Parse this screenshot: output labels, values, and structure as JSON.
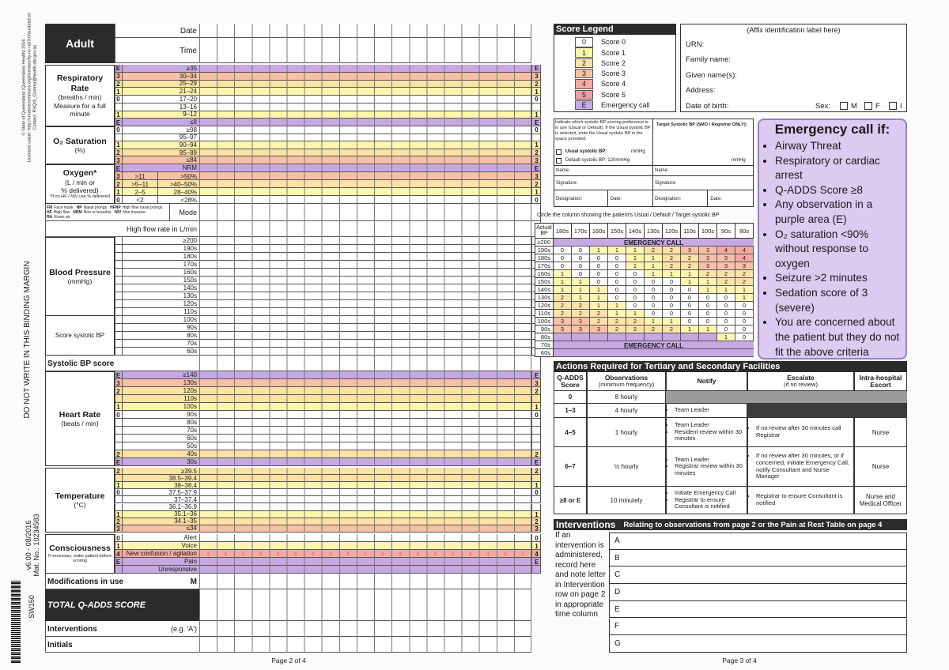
{
  "margin": {
    "copyright": [
      "© State of Queensland (Queensland Health) 2016",
      "Licensed under: http://creativecommons.org/licenses/by-nc-nd/3.0/au/deed.en",
      "Contact: PSQIS_Comms@health.qld.gov.au"
    ],
    "binding": "DO NOT WRITE IN THIS BINDING MARGIN",
    "version": "v6.00 - 08/2016",
    "mat_no": "Mat. No.: 10234583",
    "code": "SW150"
  },
  "score_legend": {
    "title": "Score Legend",
    "items": [
      {
        "score": "0",
        "label": "Score 0",
        "color": "#ffffff"
      },
      {
        "score": "1",
        "label": "Score 1",
        "color": "#fff6ae"
      },
      {
        "score": "2",
        "label": "Score 2",
        "color": "#fde2a6"
      },
      {
        "score": "3",
        "label": "Score 3",
        "color": "#f8c0a6"
      },
      {
        "score": "4",
        "label": "Score 4",
        "color": "#f4a9a2"
      },
      {
        "score": "5",
        "label": "Score 5",
        "color": "#ee9dab"
      },
      {
        "score": "E",
        "label": "Emergency call",
        "color": "#c7a8e2"
      }
    ]
  },
  "chart_sheet": {
    "header": {
      "title": "Adult",
      "date": "Date",
      "time": "Time"
    },
    "sections": [
      {
        "title": "Respiratory Rate",
        "notes": [
          "(breaths / min)",
          "Measure for a full minute"
        ],
        "rows": [
          {
            "score": "E",
            "range": [
              "≥35"
            ]
          },
          {
            "score": "3",
            "range": [
              "30–34"
            ]
          },
          {
            "score": "2",
            "range": [
              "25–29"
            ]
          },
          {
            "score": "1",
            "range": [
              "21–24"
            ]
          },
          {
            "score": "0",
            "range": [
              "17–20"
            ]
          },
          {
            "score": null,
            "range": [
              "13–16"
            ]
          },
          {
            "score": "1",
            "range": [
              "9–12"
            ]
          },
          {
            "score": "E",
            "range": [
              "≤8"
            ]
          }
        ]
      },
      {
        "title": "O₂ Saturation",
        "notes": [
          "(%)"
        ],
        "rows": [
          {
            "score": "0",
            "range": [
              "≥98"
            ]
          },
          {
            "score": null,
            "range": [
              "95–97"
            ]
          },
          {
            "score": "1",
            "range": [
              "90–94"
            ]
          },
          {
            "score": "2",
            "range": [
              "85–89"
            ]
          },
          {
            "score": "3",
            "range": [
              "≤84"
            ]
          }
        ]
      },
      {
        "title": "Oxygen*",
        "notes": [
          "(L / min or",
          "% delivered)",
          "*If on HF / NIV use % delivered"
        ],
        "rows": [
          {
            "score": "E",
            "range": [
              "NRM"
            ]
          },
          {
            "score": "3",
            "range": [
              ">11",
              ">50%"
            ]
          },
          {
            "score": "2",
            "range": [
              ">5–11",
              ">40–50%"
            ]
          },
          {
            "score": "1",
            "range": [
              "2–5",
              "28–40%"
            ]
          },
          {
            "score": "0",
            "range": [
              "<2",
              "<28%"
            ]
          }
        ]
      },
      {
        "title": "Blood Pressure",
        "notes": [
          "(mmHg)"
        ],
        "extra": "Score systolic BP",
        "rows": [
          {
            "score": null,
            "range": [
              "≥200"
            ]
          },
          {
            "score": null,
            "range": [
              "190s"
            ]
          },
          {
            "score": null,
            "range": [
              "180s"
            ]
          },
          {
            "score": null,
            "range": [
              "170s"
            ]
          },
          {
            "score": null,
            "range": [
              "160s"
            ]
          },
          {
            "score": null,
            "range": [
              "150s"
            ]
          },
          {
            "score": null,
            "range": [
              "140s"
            ]
          },
          {
            "score": null,
            "range": [
              "130s"
            ]
          },
          {
            "score": null,
            "range": [
              "120s"
            ]
          },
          {
            "score": null,
            "range": [
              "110s"
            ]
          },
          {
            "score": null,
            "range": [
              "100s"
            ]
          },
          {
            "score": null,
            "range": [
              "90s"
            ]
          },
          {
            "score": null,
            "range": [
              "80s"
            ]
          },
          {
            "score": null,
            "range": [
              "70s"
            ]
          },
          {
            "score": null,
            "range": [
              "60s"
            ]
          }
        ]
      },
      {
        "title": "Heart Rate",
        "notes": [
          "(beats / min)"
        ],
        "rows": [
          {
            "score": "E",
            "range": [
              "≥140"
            ]
          },
          {
            "score": "3",
            "range": [
              "130s"
            ]
          },
          {
            "score": "2",
            "range": [
              "120s"
            ]
          },
          {
            "score": null,
            "range": [
              "110s"
            ]
          },
          {
            "score": "1",
            "range": [
              "100s"
            ]
          },
          {
            "score": "0",
            "range": [
              "90s"
            ]
          },
          {
            "score": null,
            "range": [
              "80s"
            ]
          },
          {
            "score": null,
            "range": [
              "70s"
            ]
          },
          {
            "score": null,
            "range": [
              "60s"
            ]
          },
          {
            "score": null,
            "range": [
              "50s"
            ]
          },
          {
            "score": "2",
            "range": [
              "40s"
            ]
          },
          {
            "score": "E",
            "range": [
              "30s"
            ]
          }
        ]
      },
      {
        "title": "Temperature",
        "notes": [
          "(°C)"
        ],
        "rows": [
          {
            "score": "2",
            "range": [
              "≥39.5"
            ]
          },
          {
            "score": null,
            "range": [
              "38.5–39.4"
            ]
          },
          {
            "score": "1",
            "range": [
              "38–38.4"
            ]
          },
          {
            "score": "0",
            "range": [
              "37.5–37.9"
            ]
          },
          {
            "score": null,
            "range": [
              "37–37.4"
            ]
          },
          {
            "score": null,
            "range": [
              "36.1–36.9"
            ]
          },
          {
            "score": "1",
            "range": [
              "35.1–36"
            ]
          },
          {
            "score": "2",
            "range": [
              "34.1–35"
            ]
          },
          {
            "score": "3",
            "range": [
              "≤34"
            ]
          }
        ]
      },
      {
        "title": "Consciousness",
        "notes": [
          "If necessary, wake patient before scoring"
        ],
        "rows": [
          {
            "score": "0",
            "range": [
              "Alert"
            ]
          },
          {
            "score": "1",
            "range": [
              "Voice"
            ]
          },
          {
            "score": "4",
            "range": [
              "New confusion / agitation"
            ]
          },
          {
            "score": "E",
            "range": [
              "Pain"
            ]
          },
          {
            "score": null,
            "range": [
              "Unresponsive"
            ]
          }
        ]
      }
    ],
    "mode_legend": [
      [
        "FM",
        "Face mask"
      ],
      [
        "NP",
        "Nasal prongs"
      ],
      [
        "HFNP",
        "High flow nasal prongs"
      ],
      [
        "HF",
        "High flow"
      ],
      [
        "NRM",
        "Non re-breather"
      ],
      [
        "NIV",
        "Non invasive"
      ],
      [
        "RA",
        "Room air"
      ]
    ],
    "mode": "Mode",
    "high_flow": "High flow rate in L/min",
    "systolic_bp_score": "Systolic BP score",
    "modifications": "Modifications in use",
    "modifications_code": "M",
    "total": "TOTAL Q-ADDS SCORE",
    "interventions": "Interventions",
    "interventions_hint": "(e.g. 'A')",
    "initials": "Initials",
    "page": "Page 2 of 4"
  },
  "identification": {
    "note": "(Affix identification label here)",
    "fields": [
      "URN:",
      "Family name:",
      "Given name(s):",
      "Address:",
      "Date of birth:"
    ],
    "sex": "Sex:",
    "sex_options": [
      "M",
      "F",
      "I"
    ]
  },
  "bp_preference": {
    "instruction": "Indicate which systolic BP scoring preference is in use (Usual or Default). If the Usual systolic BP is selected, write the Usual systolic BP in the space provided:",
    "usual": "Usual systolic BP:",
    "usual_unit": "mmHg",
    "default": "Default systolic BP: 120mmHg",
    "target": "Target Systolic BP (SMO / Registrar ONLY):",
    "target_unit": "mmHg",
    "name": "Name:",
    "signature": "Signature:",
    "designation": "Designation:",
    "date": "Date:"
  },
  "circle_note": "Circle the column showing the patient's Usual / Default / Target systolic BP",
  "bp_table": {
    "header": "Actual BP",
    "emergency": "EMERGENCY CALL",
    "columns": [
      "180s",
      "170s",
      "160s",
      "150s",
      "140s",
      "130s",
      "120s",
      "110s",
      "100s",
      "90s",
      "80s"
    ],
    "rows": [
      {
        "bp": "≥200"
      },
      {
        "bp": "190s",
        "values": [
          0,
          0,
          1,
          1,
          1,
          2,
          2,
          3,
          3,
          4,
          4
        ]
      },
      {
        "bp": "180s",
        "values": [
          0,
          0,
          0,
          0,
          1,
          1,
          2,
          2,
          3,
          3,
          4
        ]
      },
      {
        "bp": "170s",
        "values": [
          0,
          0,
          0,
          0,
          1,
          1,
          2,
          2,
          3,
          3,
          3
        ]
      },
      {
        "bp": "160s",
        "values": [
          1,
          0,
          0,
          0,
          0,
          1,
          1,
          1,
          2,
          2,
          2
        ]
      },
      {
        "bp": "150s",
        "values": [
          1,
          1,
          0,
          0,
          0,
          0,
          0,
          1,
          1,
          2,
          2
        ]
      },
      {
        "bp": "140s",
        "values": [
          1,
          1,
          1,
          0,
          0,
          0,
          0,
          0,
          1,
          1,
          1
        ]
      },
      {
        "bp": "130s",
        "values": [
          2,
          1,
          1,
          0,
          0,
          0,
          0,
          0,
          0,
          0,
          1
        ]
      },
      {
        "bp": "120s",
        "values": [
          2,
          2,
          1,
          1,
          0,
          0,
          0,
          0,
          0,
          0,
          0
        ]
      },
      {
        "bp": "110s",
        "values": [
          2,
          2,
          2,
          1,
          1,
          0,
          0,
          0,
          0,
          0,
          0
        ]
      },
      {
        "bp": "100s",
        "values": [
          3,
          3,
          2,
          2,
          2,
          1,
          1,
          0,
          0,
          0,
          0
        ]
      },
      {
        "bp": "90s",
        "values": [
          3,
          3,
          3,
          2,
          2,
          2,
          2,
          1,
          1,
          0,
          0
        ]
      },
      {
        "bp": "80s",
        "values": [
          null,
          null,
          null,
          null,
          null,
          null,
          null,
          null,
          null,
          1,
          0
        ]
      },
      {
        "bp": "70s"
      },
      {
        "bp": "60s"
      }
    ]
  },
  "emergency_call": {
    "title": "Emergency call if:",
    "items": [
      "Airway Threat",
      "Respiratory or cardiac arrest",
      "Q-ADDS Score ≥8",
      "Any observation in a purple area (E)",
      "O₂ saturation <90% without response to oxygen",
      "Seizure >2 minutes",
      "Sedation score of 3 (severe)",
      "You are concerned about the patient but they do not fit the above criteria"
    ]
  },
  "actions": {
    "title": "Actions Required for Tertiary and Secondary Facilities",
    "headers": [
      {
        "text": "Q-ADDS Score"
      },
      {
        "text": "Observations",
        "sub": "(minimum frequency)"
      },
      {
        "text": "Notify"
      },
      {
        "text": "Escalate",
        "sub": "(if no review)"
      },
      {
        "text": "Intra-hospital Escort"
      }
    ],
    "rows": [
      {
        "score": "0",
        "frequency": "8 hourly"
      },
      {
        "score": "1–3",
        "frequency": "4 hourly",
        "notify": [
          "Team Leader"
        ]
      },
      {
        "score": "4–5",
        "frequency": "1 hourly",
        "notify": [
          "Team Leader",
          "Resident review within 30 minutes"
        ],
        "escalate": [
          "If no review after 30 minutes call Registrar"
        ],
        "escort": "Nurse"
      },
      {
        "score": "6–7",
        "frequency": "½ hourly",
        "notify": [
          "Team Leader",
          "Registrar review within 30 minutes"
        ],
        "escalate": [
          "If no review after 30 minutes, or if concerned, initiate Emergency Call, notify Consultant and Nurse Manager"
        ],
        "escort": "Nurse"
      },
      {
        "score": "≥8 or E",
        "frequency": "10 minutely",
        "notify": [
          "Initiate Emergency Call",
          "Registrar to ensure Consultant is notified"
        ],
        "escalate": [
          "Registrar to ensure Consultant is notified"
        ],
        "escort": "Nurse and Medical Officer"
      }
    ]
  },
  "interventions": {
    "title": "Interventions",
    "subtitle": "Relating to observations from page 2 or the Pain at Rest Table on page 4",
    "note": "If an intervention is administered, record here and note letter in Intervention row on page 2 in appropriate time column",
    "letters": [
      "A",
      "B",
      "C",
      "D",
      "E",
      "F",
      "G"
    ]
  },
  "page_right": "Page 3 of 4"
}
